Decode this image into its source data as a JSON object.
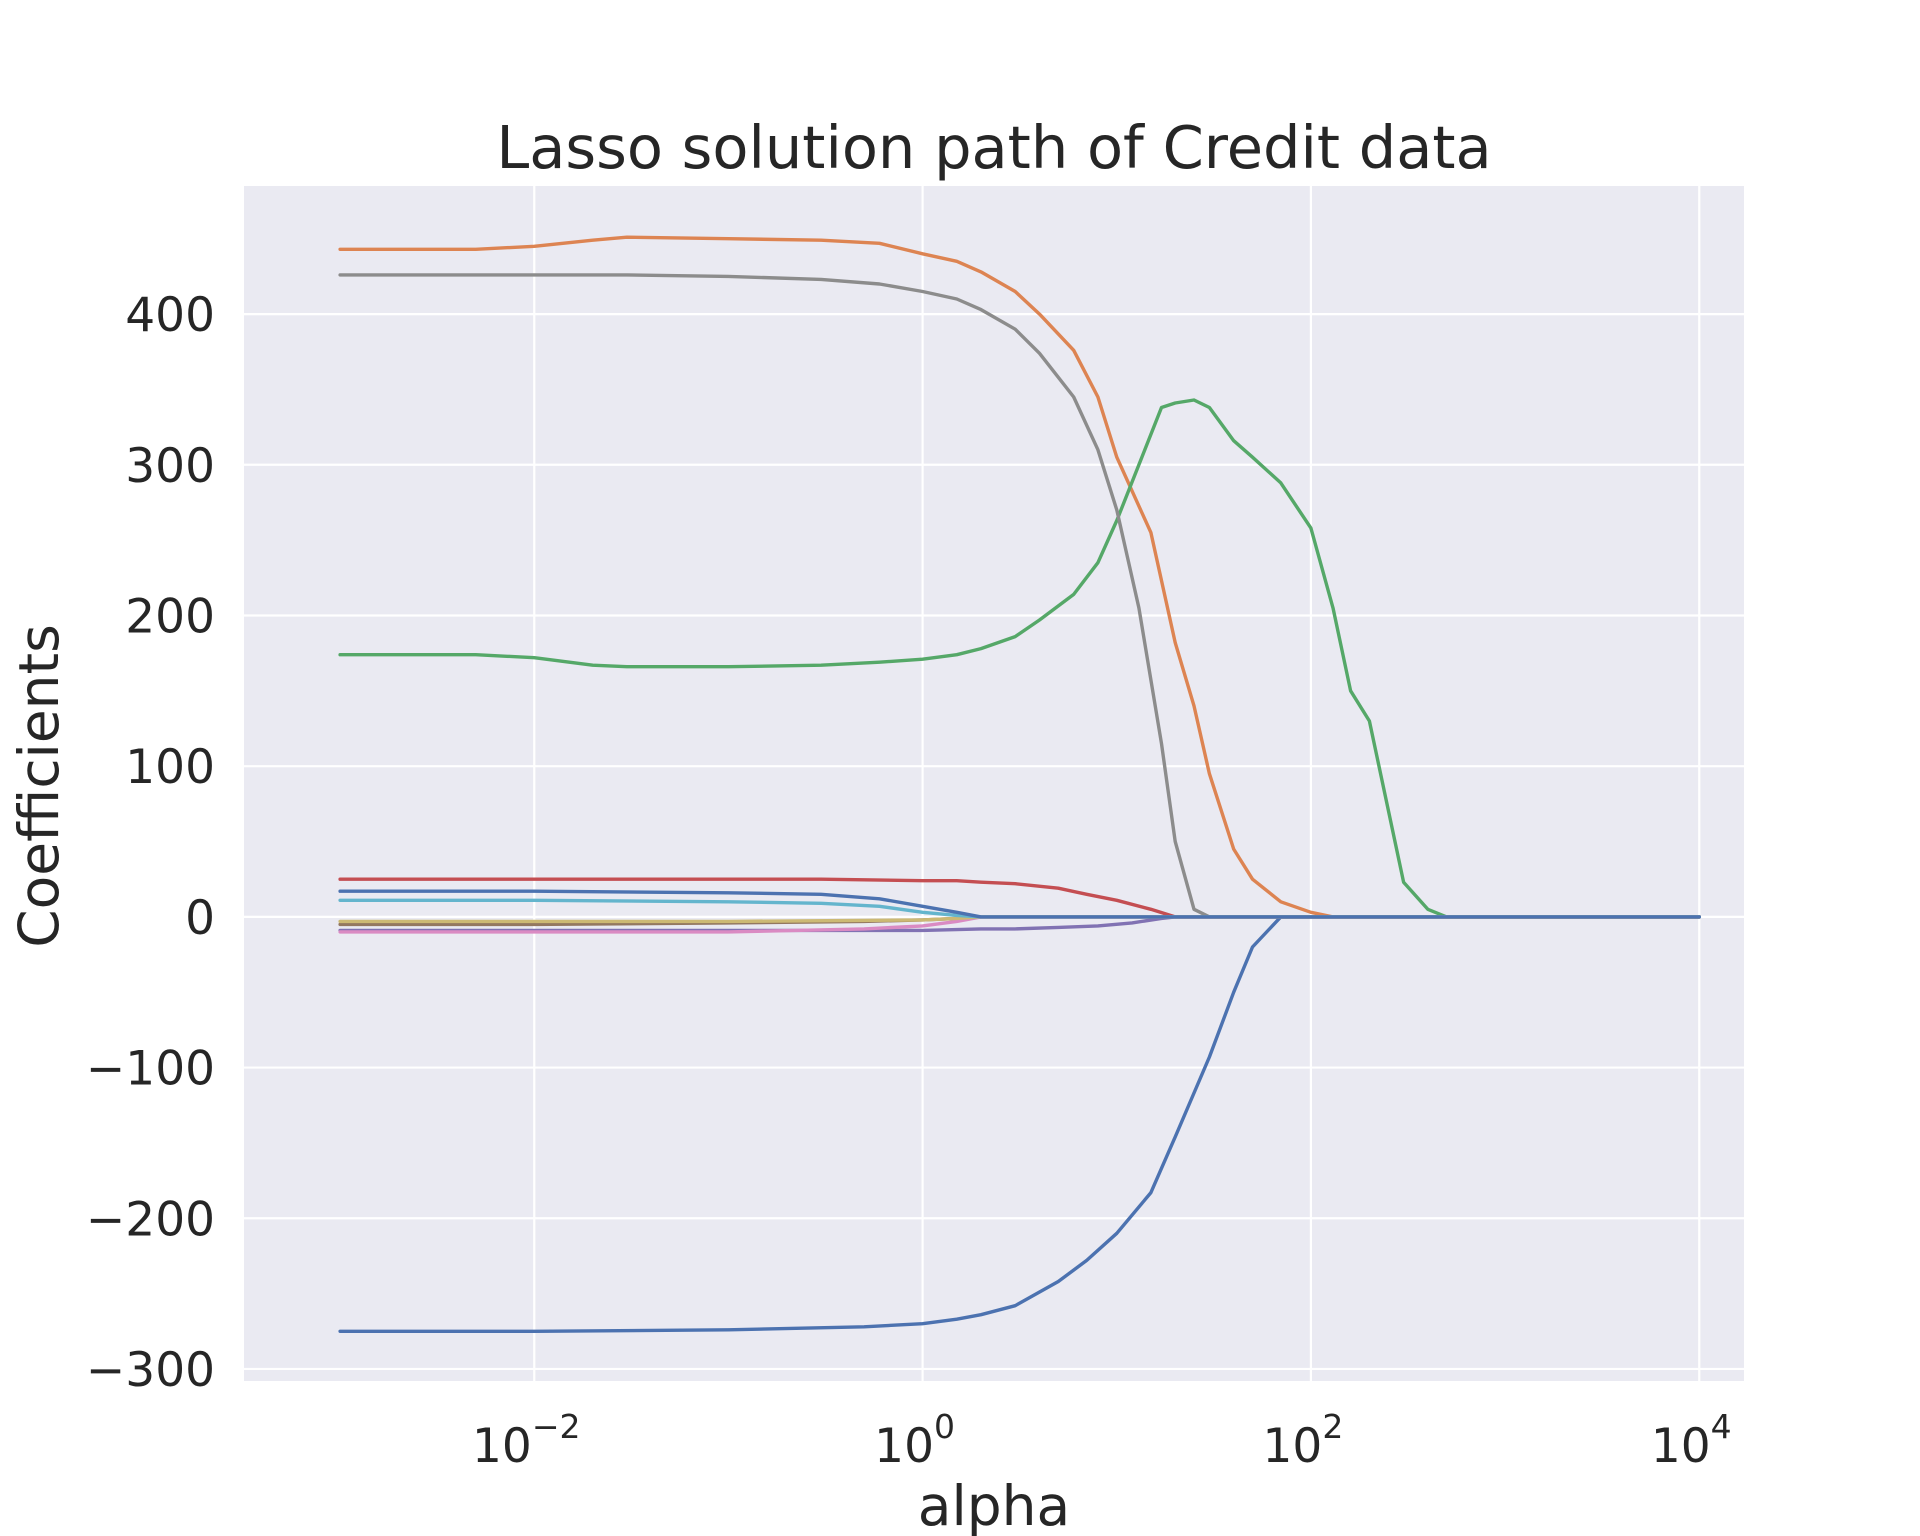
{
  "chart_data": {
    "type": "line",
    "title": "Lasso solution path of Credit data",
    "xlabel": "alpha",
    "ylabel": "Coefficients",
    "xscale": "log",
    "xlim": [
      0.00032,
      17000
    ],
    "ylim": [
      -308,
      485
    ],
    "grid": true,
    "background": "#eaeaf2",
    "gridcolor": "#ffffff",
    "xticks": [
      {
        "value": 0.01,
        "base": "10",
        "exp": "−2"
      },
      {
        "value": 1,
        "base": "10",
        "exp": "0"
      },
      {
        "value": 100,
        "base": "10",
        "exp": "2"
      },
      {
        "value": 10000,
        "base": "10",
        "exp": "4"
      }
    ],
    "yticks": [
      {
        "value": 400,
        "label": "400"
      },
      {
        "value": 300,
        "label": "300"
      },
      {
        "value": 200,
        "label": "200"
      },
      {
        "value": 100,
        "label": "100"
      },
      {
        "value": 0,
        "label": "0"
      },
      {
        "value": -100,
        "label": "−100"
      },
      {
        "value": -200,
        "label": "−200"
      },
      {
        "value": -300,
        "label": "−300"
      }
    ],
    "series": [
      {
        "color": "#4c72b0",
        "x": [
          0.001,
          0.01,
          0.1,
          0.5,
          1,
          1.5,
          2,
          3,
          5,
          7,
          10,
          15,
          20,
          30,
          40,
          50,
          70,
          100,
          10000
        ],
        "y": [
          -275,
          -275,
          -274,
          -272,
          -270,
          -267,
          -264,
          -258,
          -242,
          -228,
          -210,
          -183,
          -146,
          -93,
          -50,
          -20,
          0,
          0,
          0
        ]
      },
      {
        "color": "#dd8452",
        "x": [
          0.001,
          0.005,
          0.01,
          0.02,
          0.03,
          0.1,
          0.3,
          0.6,
          1,
          1.5,
          2,
          3,
          4,
          6,
          8,
          10,
          15,
          20,
          25,
          30,
          40,
          50,
          70,
          100,
          130,
          10000
        ],
        "y": [
          443,
          443,
          445,
          449,
          451,
          450,
          449,
          447,
          440,
          435,
          428,
          415,
          400,
          376,
          345,
          305,
          255,
          182,
          140,
          95,
          45,
          25,
          10,
          3,
          0,
          0
        ]
      },
      {
        "color": "#55a868",
        "x": [
          0.001,
          0.005,
          0.01,
          0.02,
          0.03,
          0.1,
          0.3,
          0.6,
          1,
          1.5,
          2,
          3,
          4,
          6,
          8,
          10,
          13,
          17,
          20,
          25,
          30,
          40,
          50,
          70,
          100,
          130,
          160,
          200,
          300,
          400,
          500,
          10000
        ],
        "y": [
          174,
          174,
          172,
          167,
          166,
          166,
          167,
          169,
          171,
          174,
          178,
          186,
          197,
          214,
          235,
          263,
          300,
          338,
          341,
          343,
          338,
          316,
          305,
          288,
          258,
          205,
          150,
          130,
          23,
          5,
          0,
          0
        ]
      },
      {
        "color": "#c44e52",
        "x": [
          0.001,
          0.01,
          0.03,
          0.1,
          0.3,
          1,
          1.5,
          2,
          3,
          5,
          7,
          10,
          15,
          20,
          10000
        ],
        "y": [
          25,
          25,
          25,
          25,
          25,
          24,
          24,
          23,
          22,
          19,
          15,
          11,
          5,
          0,
          0
        ]
      },
      {
        "color": "#8172b3",
        "x": [
          0.001,
          0.01,
          0.1,
          0.5,
          1,
          2,
          3,
          5,
          8,
          12,
          17,
          20,
          10000
        ],
        "y": [
          -9,
          -9,
          -9,
          -9,
          -9,
          -8,
          -8,
          -7,
          -6,
          -4,
          -1,
          0,
          0
        ]
      },
      {
        "color": "#937860",
        "x": [
          0.001,
          0.01,
          0.1,
          0.5,
          1,
          1.5,
          2,
          10000
        ],
        "y": [
          -5,
          -5,
          -4,
          -3,
          -2,
          -1,
          0,
          0
        ]
      },
      {
        "color": "#da8bc3",
        "x": [
          0.001,
          0.01,
          0.1,
          0.5,
          1,
          1.5,
          2,
          10000
        ],
        "y": [
          -10,
          -10,
          -10,
          -8,
          -6,
          -3,
          0,
          0
        ]
      },
      {
        "color": "#8c8c8c",
        "x": [
          0.001,
          0.01,
          0.03,
          0.1,
          0.3,
          0.6,
          1,
          1.5,
          2,
          3,
          4,
          6,
          8,
          10,
          13,
          17,
          20,
          25,
          30,
          10000
        ],
        "y": [
          426,
          426,
          426,
          425,
          423,
          420,
          415,
          410,
          403,
          390,
          374,
          345,
          310,
          270,
          205,
          115,
          50,
          5,
          0,
          0
        ]
      },
      {
        "color": "#ccb974",
        "x": [
          0.001,
          0.01,
          0.1,
          1,
          1.5,
          2,
          10000
        ],
        "y": [
          -3,
          -3,
          -3,
          -2,
          -1,
          0,
          0
        ]
      },
      {
        "color": "#64b5cd",
        "x": [
          0.001,
          0.01,
          0.1,
          0.3,
          0.6,
          1,
          1.5,
          2,
          10000
        ],
        "y": [
          11,
          11,
          10,
          9,
          7,
          3,
          1,
          0,
          0
        ]
      },
      {
        "color": "#4c72b0",
        "x": [
          0.001,
          0.01,
          0.1,
          0.3,
          0.6,
          1,
          1.5,
          2,
          10000
        ],
        "y": [
          17,
          17,
          16,
          15,
          12,
          7,
          3,
          0,
          0
        ]
      }
    ]
  }
}
